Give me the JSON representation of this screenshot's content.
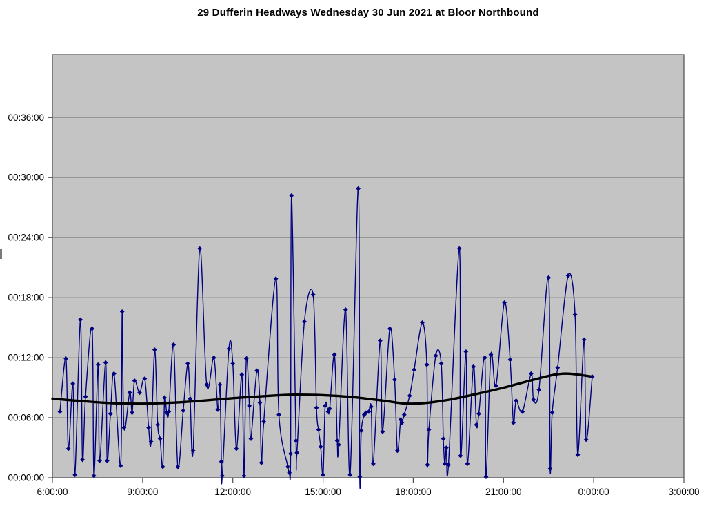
{
  "title": "29 Dufferin Headways Wednesday 30 Jun 2021 at Bloor Northbound",
  "chart_data": {
    "type": "line",
    "title": "29 Dufferin Headways Wednesday 30 Jun 2021 at Bloor Northbound",
    "xlabel": "",
    "ylabel": "",
    "grid": true,
    "legend": "none",
    "xlim_hours": [
      6,
      27
    ],
    "x_axis": {
      "ticks": [
        {
          "hour": 6,
          "label": "6:00:00"
        },
        {
          "hour": 9,
          "label": "9:00:00"
        },
        {
          "hour": 12,
          "label": "12:00:00"
        },
        {
          "hour": 15,
          "label": "15:00:00"
        },
        {
          "hour": 18,
          "label": "18:00:00"
        },
        {
          "hour": 21,
          "label": "21:00:00"
        },
        {
          "hour": 24,
          "label": "0:00:00"
        },
        {
          "hour": 27,
          "label": "3:00:00"
        }
      ]
    },
    "y_axis": {
      "max_minutes": 42.3,
      "ticks": [
        {
          "minutes": 0,
          "label": "00:00:00"
        },
        {
          "minutes": 6,
          "label": "00:06:00"
        },
        {
          "minutes": 12,
          "label": "00:12:00"
        },
        {
          "minutes": 18,
          "label": "00:18:00"
        },
        {
          "minutes": 24,
          "label": "00:24:00"
        },
        {
          "minutes": 30,
          "label": "00:30:00"
        },
        {
          "minutes": 36,
          "label": "00:36:00"
        }
      ]
    },
    "colors": {
      "plot_bg": "#c4c4c4",
      "grid": "#858585",
      "frame": "#4d4d4d",
      "series": "#000080",
      "trend": "#000000"
    },
    "point_format": "[time_of_day_hours_decimal, headway_minutes]",
    "series": [
      {
        "name": "headways",
        "marker": "diamond",
        "smoothed": true,
        "points": [
          [
            6.25,
            6.6
          ],
          [
            6.45,
            11.9
          ],
          [
            6.53,
            2.9
          ],
          [
            6.68,
            9.4
          ],
          [
            6.75,
            0.3
          ],
          [
            6.93,
            15.8
          ],
          [
            7.0,
            1.8
          ],
          [
            7.1,
            8.1
          ],
          [
            7.32,
            14.9
          ],
          [
            7.38,
            0.2
          ],
          [
            7.52,
            11.3
          ],
          [
            7.57,
            1.7
          ],
          [
            7.77,
            11.5
          ],
          [
            7.82,
            1.7
          ],
          [
            7.93,
            6.4
          ],
          [
            8.05,
            10.4
          ],
          [
            8.27,
            1.2
          ],
          [
            8.32,
            16.6
          ],
          [
            8.38,
            5.0
          ],
          [
            8.57,
            8.5
          ],
          [
            8.65,
            6.5
          ],
          [
            8.73,
            9.7
          ],
          [
            8.9,
            8.5
          ],
          [
            9.07,
            9.9
          ],
          [
            9.2,
            5.0
          ],
          [
            9.28,
            3.6
          ],
          [
            9.4,
            12.8
          ],
          [
            9.5,
            5.3
          ],
          [
            9.58,
            3.9
          ],
          [
            9.67,
            1.1
          ],
          [
            9.73,
            8.0
          ],
          [
            9.8,
            6.5
          ],
          [
            9.87,
            6.6
          ],
          [
            10.03,
            13.3
          ],
          [
            10.17,
            1.1
          ],
          [
            10.35,
            6.7
          ],
          [
            10.5,
            11.4
          ],
          [
            10.58,
            7.9
          ],
          [
            10.68,
            2.7
          ],
          [
            10.9,
            22.9
          ],
          [
            11.13,
            9.3
          ],
          [
            11.37,
            12.0
          ],
          [
            11.5,
            6.8
          ],
          [
            11.57,
            9.3
          ],
          [
            11.62,
            1.6
          ],
          [
            11.65,
            0.2
          ],
          [
            11.87,
            12.9
          ],
          [
            12.0,
            11.4
          ],
          [
            12.12,
            2.9
          ],
          [
            12.3,
            10.3
          ],
          [
            12.37,
            0.2
          ],
          [
            12.45,
            11.9
          ],
          [
            12.55,
            7.2
          ],
          [
            12.6,
            3.9
          ],
          [
            12.8,
            10.7
          ],
          [
            12.9,
            7.5
          ],
          [
            12.95,
            1.5
          ],
          [
            13.03,
            5.6
          ],
          [
            13.43,
            19.9
          ],
          [
            13.53,
            6.3
          ],
          [
            13.83,
            1.1
          ],
          [
            13.88,
            0.5
          ],
          [
            13.92,
            2.4
          ],
          [
            13.95,
            28.2
          ],
          [
            14.1,
            3.7
          ],
          [
            14.13,
            2.5
          ],
          [
            14.38,
            15.6
          ],
          [
            14.67,
            18.3
          ],
          [
            14.78,
            7.0
          ],
          [
            14.85,
            4.8
          ],
          [
            14.92,
            3.1
          ],
          [
            15.0,
            0.3
          ],
          [
            15.07,
            7.2
          ],
          [
            15.17,
            6.6
          ],
          [
            15.22,
            6.9
          ],
          [
            15.38,
            12.3
          ],
          [
            15.47,
            3.7
          ],
          [
            15.52,
            3.3
          ],
          [
            15.75,
            16.8
          ],
          [
            15.9,
            0.3
          ],
          [
            16.17,
            28.9
          ],
          [
            16.22,
            0.1
          ],
          [
            16.27,
            4.7
          ],
          [
            16.37,
            6.3
          ],
          [
            16.43,
            6.5
          ],
          [
            16.52,
            6.6
          ],
          [
            16.6,
            7.1
          ],
          [
            16.67,
            1.4
          ],
          [
            16.9,
            13.7
          ],
          [
            16.98,
            4.6
          ],
          [
            17.22,
            14.9
          ],
          [
            17.38,
            9.8
          ],
          [
            17.47,
            2.7
          ],
          [
            17.58,
            5.8
          ],
          [
            17.62,
            5.5
          ],
          [
            17.7,
            6.3
          ],
          [
            17.88,
            8.2
          ],
          [
            18.03,
            10.8
          ],
          [
            18.3,
            15.5
          ],
          [
            18.45,
            11.3
          ],
          [
            18.47,
            1.3
          ],
          [
            18.52,
            4.8
          ],
          [
            18.75,
            12.2
          ],
          [
            18.93,
            11.4
          ],
          [
            19.0,
            3.9
          ],
          [
            19.05,
            1.4
          ],
          [
            19.1,
            3.0
          ],
          [
            19.17,
            1.3
          ],
          [
            19.53,
            22.9
          ],
          [
            19.57,
            2.2
          ],
          [
            19.75,
            12.6
          ],
          [
            19.8,
            1.4
          ],
          [
            20.0,
            11.1
          ],
          [
            20.1,
            5.3
          ],
          [
            20.18,
            6.4
          ],
          [
            20.38,
            12.0
          ],
          [
            20.42,
            0.1
          ],
          [
            20.58,
            12.3
          ],
          [
            20.75,
            9.2
          ],
          [
            21.03,
            17.5
          ],
          [
            21.22,
            11.8
          ],
          [
            21.33,
            5.5
          ],
          [
            21.42,
            7.7
          ],
          [
            21.63,
            6.6
          ],
          [
            21.92,
            10.4
          ],
          [
            22.0,
            7.8
          ],
          [
            22.18,
            8.8
          ],
          [
            22.5,
            20.0
          ],
          [
            22.55,
            0.9
          ],
          [
            22.62,
            6.5
          ],
          [
            22.8,
            11.0
          ],
          [
            23.15,
            20.2
          ],
          [
            23.38,
            16.3
          ],
          [
            23.47,
            2.3
          ],
          [
            23.68,
            13.8
          ],
          [
            23.75,
            3.8
          ],
          [
            23.95,
            10.1
          ]
        ]
      },
      {
        "name": "trend",
        "marker": "none",
        "smoothed": true,
        "points": [
          [
            6.0,
            7.9
          ],
          [
            7.0,
            7.65
          ],
          [
            8.0,
            7.45
          ],
          [
            9.0,
            7.4
          ],
          [
            10.0,
            7.5
          ],
          [
            11.0,
            7.7
          ],
          [
            12.0,
            7.95
          ],
          [
            13.0,
            8.15
          ],
          [
            14.0,
            8.3
          ],
          [
            15.0,
            8.25
          ],
          [
            16.0,
            8.05
          ],
          [
            17.0,
            7.7
          ],
          [
            17.8,
            7.4
          ],
          [
            18.5,
            7.5
          ],
          [
            19.2,
            7.8
          ],
          [
            20.0,
            8.3
          ],
          [
            21.0,
            9.0
          ],
          [
            22.0,
            9.8
          ],
          [
            22.7,
            10.3
          ],
          [
            23.2,
            10.4
          ],
          [
            23.95,
            10.1
          ]
        ]
      }
    ]
  }
}
